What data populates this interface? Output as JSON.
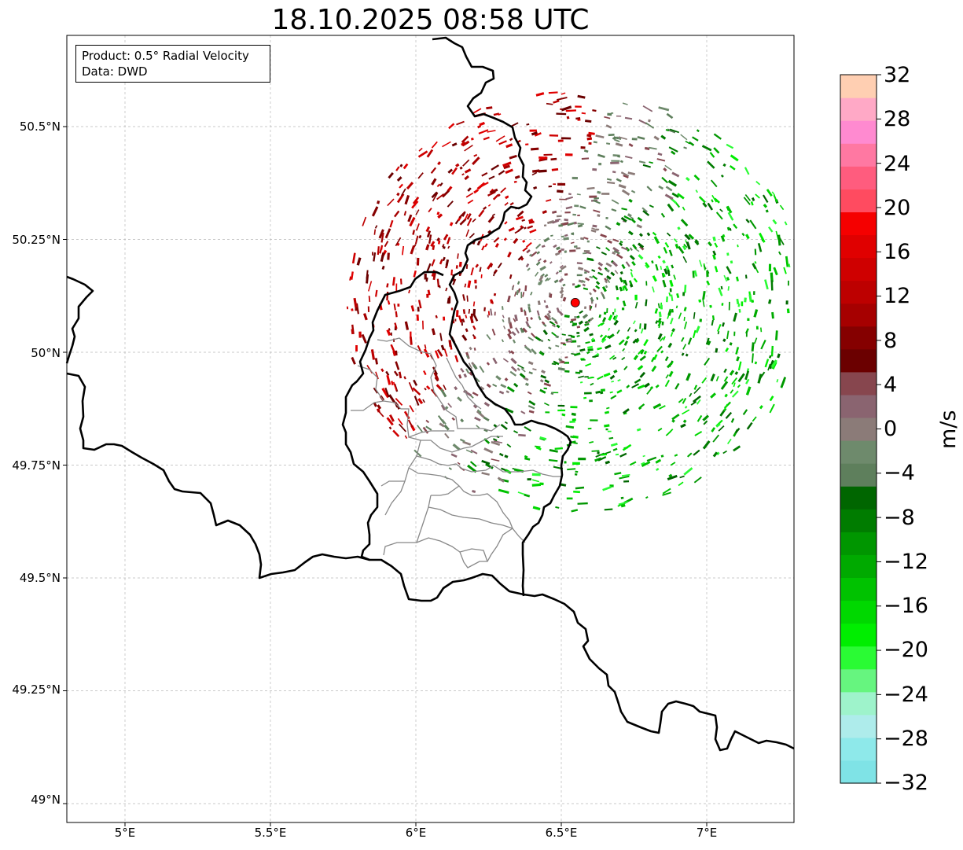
{
  "title": "18.10.2025 08:58 UTC",
  "infobox": {
    "product": "Product: 0.5° Radial Velocity",
    "data_source": "Data: DWD"
  },
  "map": {
    "extent": {
      "lon_min": 4.8,
      "lon_max": 7.3,
      "lat_min": 48.95,
      "lat_max": 50.7
    },
    "grid": true,
    "lat_ticks": [
      {
        "value": 50.5,
        "label": "50.5°N"
      },
      {
        "value": 50.25,
        "label": "50.25°N"
      },
      {
        "value": 50.0,
        "label": "50°N"
      },
      {
        "value": 49.75,
        "label": "49.75°N"
      },
      {
        "value": 49.5,
        "label": "49.5°N"
      },
      {
        "value": 49.25,
        "label": "49.25°N"
      },
      {
        "value": 49.0,
        "label": "49°N"
      }
    ],
    "lon_ticks": [
      {
        "value": 5.0,
        "label": "5°E"
      },
      {
        "value": 5.5,
        "label": "5.5°E"
      },
      {
        "value": 6.0,
        "label": "6°E"
      },
      {
        "value": 6.5,
        "label": "6.5°E"
      },
      {
        "value": 7.0,
        "label": "7°E"
      }
    ],
    "radar_site": {
      "lon": 6.548,
      "lat": 50.11,
      "color": "#ff0000"
    },
    "border_color": "#000000",
    "district_color": "#888888"
  },
  "colorbar": {
    "unit": "m/s",
    "min": -32,
    "max": 32,
    "tick_labels": [
      "32",
      "28",
      "24",
      "20",
      "16",
      "12",
      "8",
      "4",
      "0",
      "−4",
      "−8",
      "−12",
      "−16",
      "−20",
      "−24",
      "−28",
      "−32"
    ],
    "colors": [
      "#7fe3e6",
      "#8ee9ea",
      "#aeeceb",
      "#9ef3cb",
      "#66f57f",
      "#2afb34",
      "#00ee00",
      "#00d800",
      "#00c200",
      "#00aa00",
      "#009600",
      "#007c00",
      "#006600",
      "#5e7f5c",
      "#6e8a6c",
      "#8b7b78",
      "#8a6470",
      "#87464e",
      "#6b0000",
      "#850000",
      "#a60000",
      "#bd0000",
      "#cf0000",
      "#e00000",
      "#f50000",
      "#ff4b60",
      "#ff5c7e",
      "#ff78a2",
      "#ff8ad0",
      "#ffa9c6",
      "#ffcfb2"
    ]
  }
}
